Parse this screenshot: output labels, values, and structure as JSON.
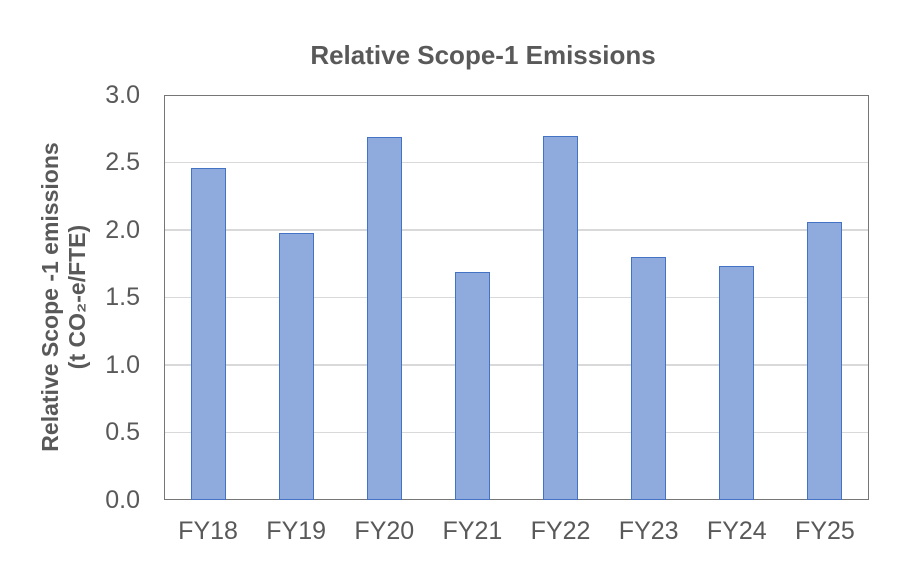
{
  "chart_data": {
    "type": "bar",
    "title": "Relative Scope-1 Emissions",
    "ylabel_line1": "Relative Scope -1 emissions",
    "ylabel_line2": "(t CO₂-e/FTE)",
    "xlabel": "",
    "categories": [
      "FY18",
      "FY19",
      "FY20",
      "FY21",
      "FY22",
      "FY23",
      "FY24",
      "FY25"
    ],
    "values": [
      2.46,
      1.98,
      2.69,
      1.69,
      2.7,
      1.8,
      1.73,
      2.06
    ],
    "ylim": [
      0.0,
      3.0
    ],
    "ytick_step": 0.5,
    "ytick_decimals": 1,
    "grid": "horizontal",
    "legend": "none",
    "colors": {
      "bar_fill": "#8FAADC",
      "bar_border": "#4472C4",
      "gridline": "#D9D9D9",
      "plot_border": "#767676",
      "text": "#595959",
      "background": "#FFFFFF"
    }
  }
}
